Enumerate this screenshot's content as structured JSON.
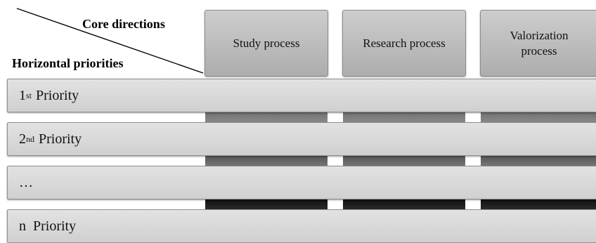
{
  "header": {
    "core_directions": "Core directions",
    "horizontal_priorities": "Horizontal priorities"
  },
  "columns": [
    {
      "label": "Study process"
    },
    {
      "label": "Research process"
    },
    {
      "label": "Valorization\nprocess"
    }
  ],
  "rows": [
    {
      "prefix": "1",
      "sup": "st",
      "suffix": " Priority"
    },
    {
      "prefix": "2",
      "sup": "nd",
      "suffix": " Priority"
    },
    {
      "prefix": "…",
      "sup": "",
      "suffix": ""
    },
    {
      "prefix": "n",
      "sup": "",
      "suffix": "  Priority"
    }
  ],
  "colors": {
    "box": "#bdbdbd",
    "row": "#d9d9d9"
  }
}
